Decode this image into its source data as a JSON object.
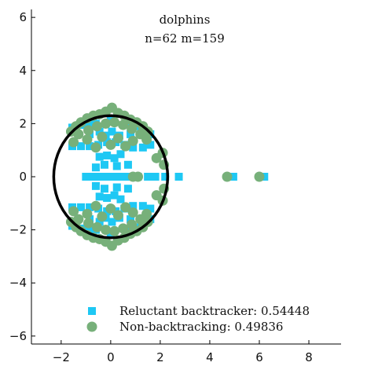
{
  "chart_data": {
    "type": "scatter",
    "title": "dolphins",
    "subtitle": "n=62 m=159",
    "xlim": [
      -3.2,
      9.3
    ],
    "ylim": [
      -6.3,
      6.3
    ],
    "x_ticks": [
      -2,
      0,
      2,
      4,
      6,
      8
    ],
    "y_ticks": [
      -6,
      -4,
      -2,
      0,
      2,
      4,
      6
    ],
    "x_tick_labels": [
      "−2",
      "0",
      "2",
      "4",
      "6",
      "8"
    ],
    "y_tick_labels": [
      "−6",
      "−4",
      "−2",
      "0",
      "2",
      "4",
      "6"
    ],
    "grid": false,
    "legend_position": "bottom-center",
    "circle": {
      "center": [
        0,
        0
      ],
      "radius": 2.3,
      "color": "#000000"
    },
    "series": [
      {
        "name": "Reluctant backtracker: 0.54448",
        "marker": "square",
        "color": "#1ec8f4",
        "points": [
          [
            -1.55,
            1.15
          ],
          [
            -1.2,
            1.15
          ],
          [
            -0.85,
            1.15
          ],
          [
            -0.5,
            1.2
          ],
          [
            -0.15,
            1.3
          ],
          [
            0.2,
            1.3
          ],
          [
            0.55,
            1.2
          ],
          [
            0.9,
            1.1
          ],
          [
            1.3,
            1.1
          ],
          [
            1.6,
            1.2
          ],
          [
            -1.55,
            1.85
          ],
          [
            -1.2,
            1.95
          ],
          [
            -0.9,
            2.0
          ],
          [
            -0.6,
            2.0
          ],
          [
            0,
            2.1
          ],
          [
            0.6,
            2.0
          ],
          [
            1.0,
            1.9
          ],
          [
            1.3,
            1.8
          ],
          [
            1.6,
            1.6
          ],
          [
            -0.45,
            1.7
          ],
          [
            -0.2,
            1.55
          ],
          [
            0.05,
            1.7
          ],
          [
            0.35,
            1.55
          ],
          [
            -0.85,
            1.6
          ],
          [
            0.8,
            1.6
          ],
          [
            -0.45,
            0.75
          ],
          [
            -0.15,
            0.8
          ],
          [
            0.15,
            0.7
          ],
          [
            0.4,
            0.85
          ],
          [
            -0.25,
            0.45
          ],
          [
            0.25,
            0.4
          ],
          [
            0.7,
            0.45
          ],
          [
            -0.6,
            0.35
          ],
          [
            -1.0,
            0
          ],
          [
            -0.7,
            0
          ],
          [
            -0.4,
            0
          ],
          [
            -0.1,
            0
          ],
          [
            0.2,
            0
          ],
          [
            0.5,
            0
          ],
          [
            0.8,
            0
          ],
          [
            1.1,
            0
          ],
          [
            1.5,
            0
          ],
          [
            1.8,
            0
          ],
          [
            2.2,
            0
          ],
          [
            2.75,
            0
          ],
          [
            4.95,
            0
          ],
          [
            6.2,
            0
          ],
          [
            -0.45,
            -0.75
          ],
          [
            -0.15,
            -0.8
          ],
          [
            0.15,
            -0.7
          ],
          [
            0.4,
            -0.85
          ],
          [
            -0.25,
            -0.45
          ],
          [
            0.25,
            -0.4
          ],
          [
            0.7,
            -0.45
          ],
          [
            -0.6,
            -0.35
          ],
          [
            -1.55,
            -1.15
          ],
          [
            -1.2,
            -1.15
          ],
          [
            -0.85,
            -1.15
          ],
          [
            -0.5,
            -1.2
          ],
          [
            -0.15,
            -1.3
          ],
          [
            0.2,
            -1.3
          ],
          [
            0.55,
            -1.2
          ],
          [
            0.9,
            -1.1
          ],
          [
            1.3,
            -1.1
          ],
          [
            1.6,
            -1.2
          ],
          [
            -1.55,
            -1.85
          ],
          [
            -1.2,
            -1.95
          ],
          [
            -0.9,
            -2.0
          ],
          [
            -0.6,
            -2.0
          ],
          [
            0,
            -2.1
          ],
          [
            0.6,
            -2.0
          ],
          [
            1.0,
            -1.9
          ],
          [
            1.3,
            -1.8
          ],
          [
            1.6,
            -1.6
          ],
          [
            -0.45,
            -1.7
          ],
          [
            -0.2,
            -1.55
          ],
          [
            0.05,
            -1.7
          ],
          [
            0.35,
            -1.55
          ],
          [
            -0.85,
            -1.6
          ],
          [
            0.8,
            -1.6
          ]
        ]
      },
      {
        "name": "Non-backtracking: 0.49836",
        "marker": "circle",
        "color": "#77b07a",
        "points": [
          [
            -1.6,
            1.7
          ],
          [
            -1.4,
            1.9
          ],
          [
            -1.2,
            2.05
          ],
          [
            -0.95,
            2.2
          ],
          [
            -0.7,
            2.3
          ],
          [
            -0.45,
            2.35
          ],
          [
            -0.2,
            2.45
          ],
          [
            0.05,
            2.6
          ],
          [
            0.3,
            2.4
          ],
          [
            0.55,
            2.3
          ],
          [
            0.8,
            2.15
          ],
          [
            1.05,
            2.05
          ],
          [
            1.3,
            1.9
          ],
          [
            1.5,
            1.7
          ],
          [
            -1.3,
            1.6
          ],
          [
            -0.9,
            1.75
          ],
          [
            -0.55,
            1.9
          ],
          [
            -0.2,
            2.0
          ],
          [
            0.15,
            2.05
          ],
          [
            0.5,
            1.95
          ],
          [
            0.85,
            1.8
          ],
          [
            1.2,
            1.6
          ],
          [
            -1.5,
            1.3
          ],
          [
            -0.95,
            1.4
          ],
          [
            -0.35,
            1.5
          ],
          [
            0.3,
            1.45
          ],
          [
            0.9,
            1.35
          ],
          [
            1.45,
            1.4
          ],
          [
            -0.6,
            1.1
          ],
          [
            0.0,
            1.2
          ],
          [
            0.6,
            1.15
          ],
          [
            -1.6,
            -1.7
          ],
          [
            -1.4,
            -1.9
          ],
          [
            -1.2,
            -2.05
          ],
          [
            -0.95,
            -2.2
          ],
          [
            -0.7,
            -2.3
          ],
          [
            -0.45,
            -2.35
          ],
          [
            -0.2,
            -2.45
          ],
          [
            0.05,
            -2.6
          ],
          [
            0.3,
            -2.4
          ],
          [
            0.55,
            -2.3
          ],
          [
            0.8,
            -2.15
          ],
          [
            1.05,
            -2.05
          ],
          [
            1.3,
            -1.9
          ],
          [
            1.5,
            -1.7
          ],
          [
            -1.3,
            -1.6
          ],
          [
            -0.9,
            -1.75
          ],
          [
            -0.55,
            -1.9
          ],
          [
            -0.2,
            -2.0
          ],
          [
            0.15,
            -2.05
          ],
          [
            0.5,
            -1.95
          ],
          [
            0.85,
            -1.8
          ],
          [
            1.2,
            -1.6
          ],
          [
            -1.5,
            -1.3
          ],
          [
            -0.95,
            -1.4
          ],
          [
            -0.35,
            -1.5
          ],
          [
            0.3,
            -1.45
          ],
          [
            0.9,
            -1.35
          ],
          [
            1.45,
            -1.4
          ],
          [
            -0.6,
            -1.1
          ],
          [
            0.0,
            -1.2
          ],
          [
            0.6,
            -1.15
          ],
          [
            2.1,
            0.9
          ],
          [
            2.15,
            0.45
          ],
          [
            2.15,
            -0.45
          ],
          [
            2.1,
            -0.9
          ],
          [
            1.85,
            0.7
          ],
          [
            1.85,
            -0.7
          ],
          [
            0.9,
            0
          ],
          [
            1.1,
            0
          ],
          [
            4.7,
            0
          ],
          [
            6.0,
            0
          ]
        ]
      }
    ]
  }
}
